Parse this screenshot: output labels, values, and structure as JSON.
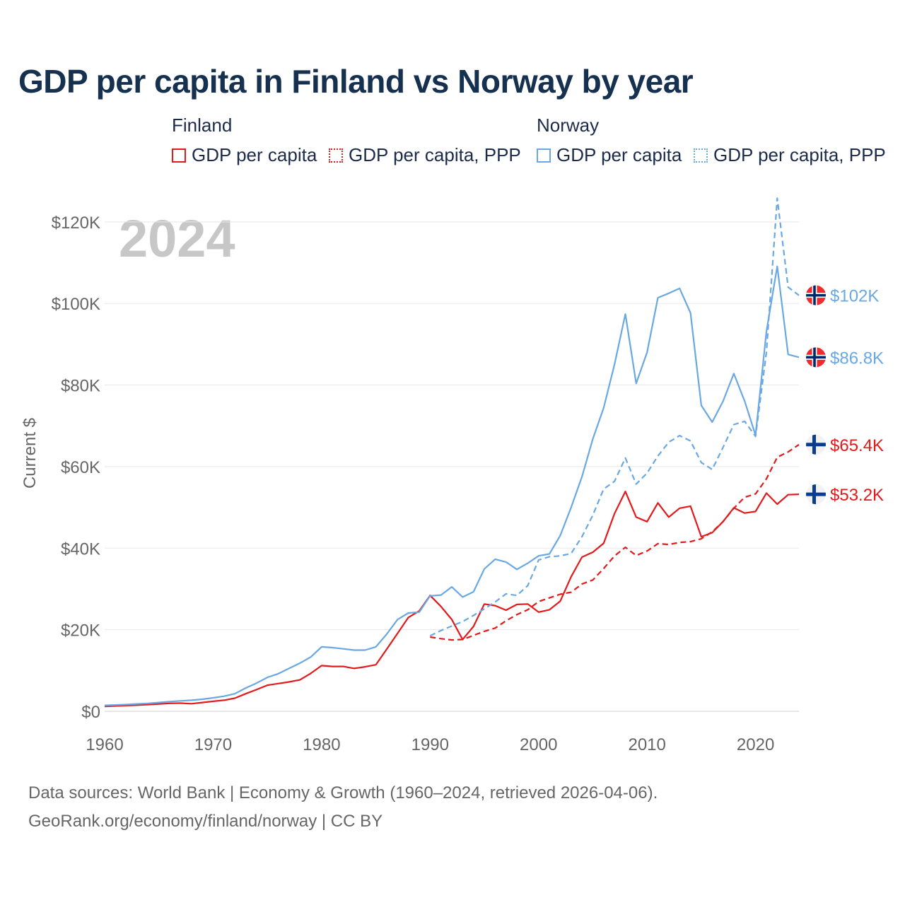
{
  "chart_data": {
    "type": "line",
    "title": "GDP per capita in Finland vs Norway by year",
    "year_label": "2024",
    "ylabel": "Current $",
    "xlabel": "",
    "xlim": [
      1960,
      2024
    ],
    "ylim": [
      0,
      125000
    ],
    "x_ticks": [
      1960,
      1970,
      1980,
      1990,
      2000,
      2010,
      2020
    ],
    "y_ticks": [
      {
        "value": 0,
        "label": "$0"
      },
      {
        "value": 20000,
        "label": "$20K"
      },
      {
        "value": 40000,
        "label": "$40K"
      },
      {
        "value": 60000,
        "label": "$60K"
      },
      {
        "value": 80000,
        "label": "$80K"
      },
      {
        "value": 100000,
        "label": "$100K"
      },
      {
        "value": 120000,
        "label": "$120K"
      }
    ],
    "legend": {
      "groups": [
        {
          "title": "Finland",
          "items": [
            "GDP per capita",
            "GDP per capita, PPP"
          ]
        },
        {
          "title": "Norway",
          "items": [
            "GDP per capita",
            "GDP per capita, PPP"
          ]
        }
      ]
    },
    "series": [
      {
        "name": "Finland GDP per capita",
        "country": "Finland",
        "color": "#e31a1c",
        "dashed": false,
        "end_label": "$53.2K",
        "flag": "finland",
        "x": [
          1960,
          1961,
          1962,
          1963,
          1964,
          1965,
          1966,
          1967,
          1968,
          1969,
          1970,
          1971,
          1972,
          1973,
          1974,
          1975,
          1976,
          1977,
          1978,
          1979,
          1980,
          1981,
          1982,
          1983,
          1984,
          1985,
          1986,
          1987,
          1988,
          1989,
          1990,
          1991,
          1992,
          1993,
          1994,
          1995,
          1996,
          1997,
          1998,
          1999,
          2000,
          2001,
          2002,
          2003,
          2004,
          2005,
          2006,
          2007,
          2008,
          2009,
          2010,
          2011,
          2012,
          2013,
          2014,
          2015,
          2016,
          2017,
          2018,
          2019,
          2020,
          2021,
          2022,
          2023,
          2024
        ],
        "values": [
          1200,
          1300,
          1400,
          1500,
          1650,
          1800,
          1950,
          2000,
          1850,
          2150,
          2450,
          2700,
          3200,
          4300,
          5300,
          6400,
          6800,
          7200,
          7700,
          9300,
          11200,
          11000,
          11000,
          10500,
          10900,
          11400,
          15200,
          19100,
          23000,
          24600,
          28400,
          25700,
          22500,
          17600,
          20800,
          26300,
          25900,
          24800,
          26200,
          26300,
          24300,
          24900,
          27000,
          33000,
          37800,
          39000,
          41200,
          48500,
          53900,
          47600,
          46500,
          51100,
          47600,
          49800,
          50300,
          42800,
          43800,
          46500,
          49900,
          48600,
          49000,
          53500,
          50800,
          53100,
          53200
        ]
      },
      {
        "name": "Finland GDP per capita, PPP",
        "country": "Finland",
        "color": "#e31a1c",
        "dashed": true,
        "end_label": "$65.4K",
        "flag": "finland",
        "x": [
          1990,
          1991,
          1992,
          1993,
          1994,
          1995,
          1996,
          1997,
          1998,
          1999,
          2000,
          2001,
          2002,
          2003,
          2004,
          2005,
          2006,
          2007,
          2008,
          2009,
          2010,
          2011,
          2012,
          2013,
          2014,
          2015,
          2016,
          2017,
          2018,
          2019,
          2020,
          2021,
          2022,
          2023,
          2024
        ],
        "values": [
          18200,
          17800,
          17500,
          17600,
          18600,
          19600,
          20400,
          22200,
          23700,
          24900,
          26900,
          27800,
          28700,
          29200,
          31200,
          32200,
          35000,
          38100,
          40200,
          38200,
          39300,
          41100,
          40900,
          41400,
          41600,
          42300,
          44000,
          46500,
          49800,
          52500,
          53300,
          57000,
          62300,
          63600,
          65400
        ]
      },
      {
        "name": "Norway GDP per capita",
        "country": "Norway",
        "color": "#6aa8e3",
        "dashed": false,
        "end_label": "$86.8K",
        "flag": "norway",
        "x": [
          1960,
          1961,
          1962,
          1963,
          1964,
          1965,
          1966,
          1967,
          1968,
          1969,
          1970,
          1971,
          1972,
          1973,
          1974,
          1975,
          1976,
          1977,
          1978,
          1979,
          1980,
          1981,
          1982,
          1983,
          1984,
          1985,
          1986,
          1987,
          1988,
          1989,
          1990,
          1991,
          1992,
          1993,
          1994,
          1995,
          1996,
          1997,
          1998,
          1999,
          2000,
          2001,
          2002,
          2003,
          2004,
          2005,
          2006,
          2007,
          2008,
          2009,
          2010,
          2011,
          2012,
          2013,
          2014,
          2015,
          2016,
          2017,
          2018,
          2019,
          2020,
          2021,
          2022,
          2023,
          2024
        ],
        "values": [
          1450,
          1550,
          1650,
          1800,
          1950,
          2150,
          2350,
          2550,
          2700,
          2950,
          3300,
          3700,
          4300,
          5700,
          6900,
          8300,
          9200,
          10500,
          11800,
          13300,
          15800,
          15600,
          15300,
          15000,
          15000,
          15800,
          18900,
          22500,
          24100,
          24300,
          28300,
          28500,
          30500,
          28000,
          29300,
          34900,
          37300,
          36600,
          34800,
          36300,
          38100,
          38600,
          43100,
          50000,
          57500,
          66800,
          74400,
          85100,
          97400,
          80400,
          88000,
          101400,
          102500,
          103700,
          97700,
          75000,
          70900,
          76000,
          82800,
          76000,
          67700,
          93100,
          109100,
          87500,
          86800
        ]
      },
      {
        "name": "Norway GDP per capita, PPP",
        "country": "Norway",
        "color": "#6aa8e3",
        "dashed": true,
        "end_label": "$102K",
        "flag": "norway",
        "x": [
          1990,
          1991,
          1992,
          1993,
          1994,
          1995,
          1996,
          1997,
          1998,
          1999,
          2000,
          2001,
          2002,
          2003,
          2004,
          2005,
          2006,
          2007,
          2008,
          2009,
          2010,
          2011,
          2012,
          2013,
          2014,
          2015,
          2016,
          2017,
          2018,
          2019,
          2020,
          2021,
          2022,
          2023,
          2024
        ],
        "values": [
          18500,
          19800,
          20900,
          22000,
          23500,
          25100,
          26800,
          28800,
          28400,
          30800,
          37100,
          37900,
          38100,
          38700,
          42800,
          48100,
          54500,
          56400,
          62100,
          55700,
          58400,
          62600,
          66000,
          67600,
          66300,
          61000,
          59300,
          64700,
          70300,
          71100,
          67400,
          88000,
          125800,
          104000,
          102000
        ]
      }
    ]
  },
  "footer": {
    "line1": "Data sources: World Bank | Economy & Growth (1960–2024, retrieved 2026-04-06).",
    "line2": "GeoRank.org/economy/finland/norway | CC BY"
  },
  "colors": {
    "finland": "#e31a1c",
    "norway": "#6aa8e3",
    "title": "#163050",
    "axis_text": "#666666",
    "year_watermark": "#c7c7c7"
  }
}
